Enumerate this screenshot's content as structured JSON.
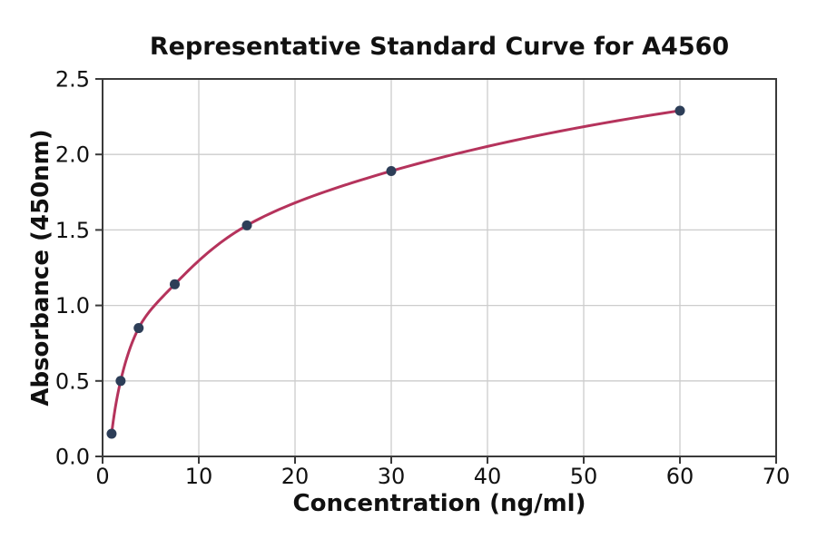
{
  "chart_data": {
    "type": "scatter",
    "title": "Representative Standard Curve for A4560",
    "xlabel": "Concentration (ng/ml)",
    "ylabel": "Absorbance (450nm)",
    "x": [
      0.94,
      1.875,
      3.75,
      7.5,
      15,
      30,
      60
    ],
    "y": [
      0.15,
      0.5,
      0.85,
      1.14,
      1.53,
      1.89,
      2.29
    ],
    "xlim": [
      0,
      70
    ],
    "ylim": [
      0,
      2.5
    ],
    "xtick_labels": [
      "0",
      "10",
      "20",
      "30",
      "40",
      "50",
      "60",
      "70"
    ],
    "ytick_labels": [
      "0.0",
      "0.5",
      "1.0",
      "1.5",
      "2.0",
      "2.5"
    ],
    "grid": true,
    "legend": "none",
    "curve_style": "smooth fit line through points",
    "colors": {
      "curve": "#b5335c",
      "marker": "#2d3e58",
      "grid": "#cccccc",
      "spine": "#3a3a3a",
      "text": "#111111",
      "background": "#ffffff"
    }
  }
}
